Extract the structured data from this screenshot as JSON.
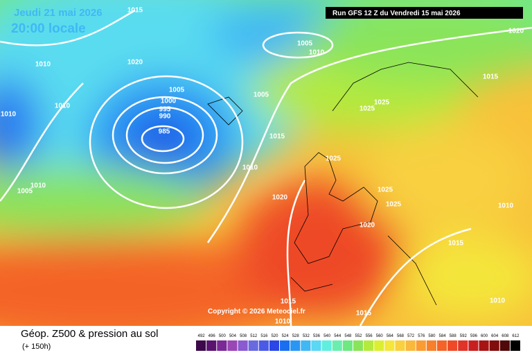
{
  "header": {
    "date": "Jeudi 21 mai 2026",
    "time": "20:00 locale",
    "run": "Run GFS 12 Z du Vendredi 15 mai 2026"
  },
  "copyright": "Copyright © 2026 Meteociel.fr",
  "footer": {
    "title": "Géop. Z500 & pression au sol",
    "lead": "(+ 150h)"
  },
  "isobars": [
    1015,
    1020,
    1005,
    1010,
    1010,
    1020,
    1010,
    1010,
    1005,
    1005,
    1000,
    995,
    990,
    985,
    1015,
    1025,
    1025,
    1015,
    1010,
    1025,
    1010,
    1005,
    1020,
    1025,
    1025,
    1010,
    1020,
    1015,
    1010,
    1015,
    1015,
    1010
  ],
  "scale": {
    "labels": [
      492,
      496,
      500,
      504,
      508,
      512,
      516,
      520,
      524,
      528,
      532,
      536,
      540,
      544,
      548,
      552,
      556,
      560,
      564,
      568,
      572,
      576,
      580,
      584,
      588,
      592,
      596,
      600,
      604,
      608,
      612
    ],
    "colors": [
      "#3c0a4a",
      "#5a1470",
      "#7a2a96",
      "#9a46b4",
      "#8a5ad0",
      "#6a6ae0",
      "#4a5ae6",
      "#2a46e6",
      "#1a6ef0",
      "#2a96f4",
      "#40b8f4",
      "#5ad8f4",
      "#60eede",
      "#6aeeb0",
      "#6ee880",
      "#8ae45a",
      "#b4ea3c",
      "#dcee30",
      "#f4e63a",
      "#f8d040",
      "#fab83c",
      "#fa9c32",
      "#f8802a",
      "#f46428",
      "#ee4a28",
      "#e03428",
      "#c82020",
      "#a81414",
      "#800c0c",
      "#500808",
      "#000000"
    ]
  }
}
